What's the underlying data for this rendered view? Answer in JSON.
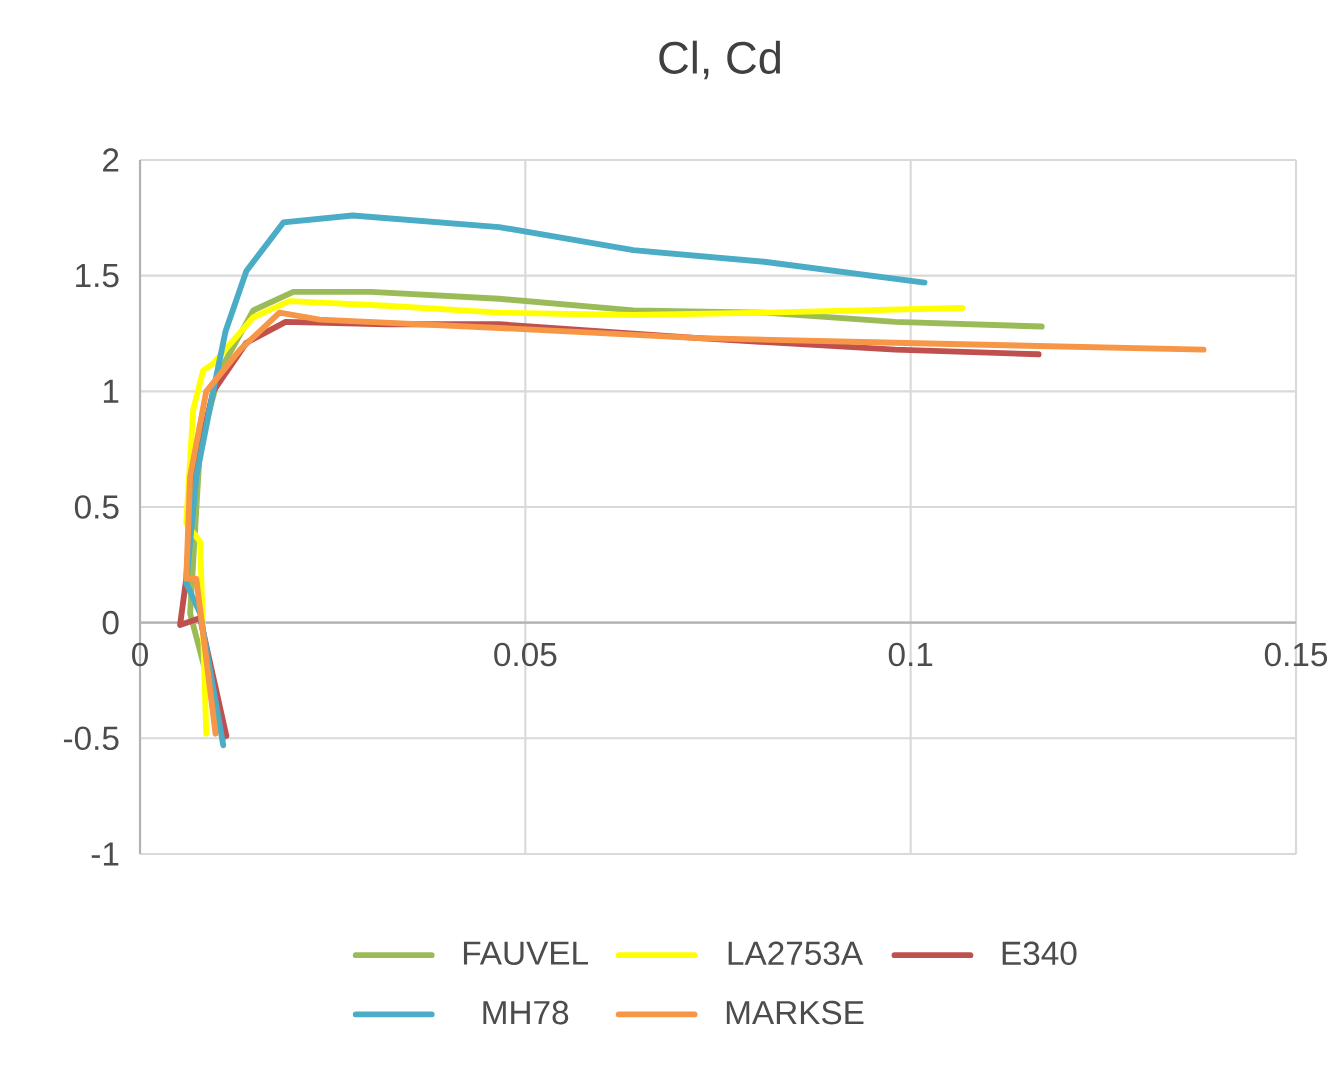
{
  "chart_data": {
    "type": "line",
    "title": "Cl, Cd",
    "xlim": [
      0,
      0.15
    ],
    "xticks": [
      0,
      0.05,
      0.1,
      0.15
    ],
    "ylim": [
      -1,
      2
    ],
    "yticks": [
      -1,
      -0.5,
      0,
      0.5,
      1,
      1.5,
      2
    ],
    "grid": true,
    "legend": "bottom",
    "series": [
      {
        "name": "FAUVEL",
        "color": "#9bbb59",
        "x": [
          0.0108,
          0.0065,
          0.0078,
          0.0104,
          0.0147,
          0.0199,
          0.03,
          0.0466,
          0.064,
          0.081,
          0.098,
          0.117
        ],
        "values": [
          -0.5,
          0.04,
          0.77,
          1.09,
          1.35,
          1.43,
          1.43,
          1.4,
          1.35,
          1.34,
          1.3,
          1.28
        ]
      },
      {
        "name": "LA2753A",
        "color": "#ffff00",
        "x": [
          0.0086,
          0.0078,
          0.006,
          0.0069,
          0.0082,
          0.0095,
          0.0147,
          0.0194,
          0.032,
          0.0466,
          0.064,
          0.081,
          0.1067
        ],
        "values": [
          -0.48,
          0.35,
          0.43,
          0.92,
          1.09,
          1.12,
          1.32,
          1.39,
          1.37,
          1.34,
          1.33,
          1.34,
          1.36
        ]
      },
      {
        "name": "E340",
        "color": "#c0504d",
        "x": [
          0.0112,
          0.0078,
          0.0052,
          0.006,
          0.0069,
          0.0095,
          0.0138,
          0.0189,
          0.032,
          0.0466,
          0.0725,
          0.098,
          0.1166
        ],
        "values": [
          -0.49,
          0.02,
          -0.01,
          0.19,
          0.63,
          1.0,
          1.21,
          1.3,
          1.29,
          1.29,
          1.23,
          1.18,
          1.16
        ]
      },
      {
        "name": "MH78",
        "color": "#4bacc6",
        "x": [
          0.0108,
          0.0078,
          0.006,
          0.0073,
          0.0095,
          0.0111,
          0.0138,
          0.0186,
          0.0276,
          0.0466,
          0.064,
          0.081,
          0.1018
        ],
        "values": [
          -0.53,
          0.04,
          0.17,
          0.63,
          1.0,
          1.26,
          1.52,
          1.73,
          1.76,
          1.71,
          1.61,
          1.56,
          1.47
        ]
      },
      {
        "name": "MARKSE",
        "color": "#f79646",
        "x": [
          0.0098,
          0.0073,
          0.006,
          0.0065,
          0.0086,
          0.013,
          0.0181,
          0.0233,
          0.049,
          0.0725,
          0.098,
          0.138
        ],
        "values": [
          -0.48,
          0.19,
          0.19,
          0.63,
          1.0,
          1.18,
          1.34,
          1.31,
          1.27,
          1.23,
          1.21,
          1.18
        ]
      }
    ]
  }
}
